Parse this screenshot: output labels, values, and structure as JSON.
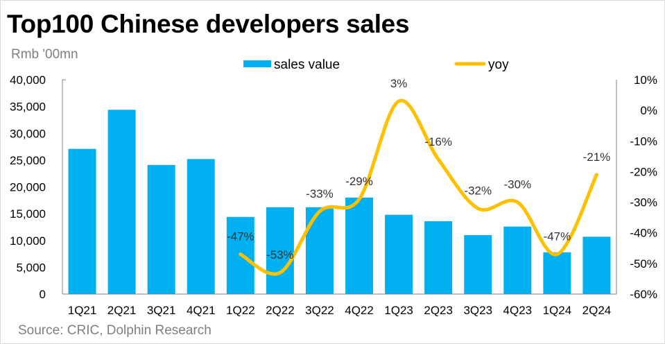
{
  "chart_data": {
    "type": "bar+line",
    "title": "Top100 Chinese developers sales",
    "ylabel": "Rmb '00mn",
    "source": "Source: CRIC, Dolphin Research",
    "categories": [
      "1Q21",
      "2Q21",
      "3Q21",
      "4Q21",
      "1Q22",
      "2Q22",
      "3Q22",
      "4Q22",
      "1Q23",
      "2Q23",
      "3Q23",
      "4Q23",
      "1Q24",
      "2Q24"
    ],
    "series": [
      {
        "name": "sales value",
        "type": "bar",
        "axis": "left",
        "color": "#00b0f0",
        "values": [
          27100,
          34400,
          24100,
          25200,
          14400,
          16200,
          16200,
          18000,
          14800,
          13600,
          11000,
          12600,
          7800,
          10700
        ]
      },
      {
        "name": "yoy",
        "type": "line",
        "axis": "right",
        "color": "#ffc000",
        "values": [
          null,
          null,
          null,
          null,
          -47,
          -53,
          -33,
          -29,
          3,
          -16,
          -32,
          -30,
          -47,
          -21
        ],
        "labels": [
          "",
          "",
          "",
          "",
          "-47%",
          "-53%",
          "-33%",
          "-29%",
          "3%",
          "-16%",
          "-32%",
          "-30%",
          "-47%",
          "-21%"
        ]
      }
    ],
    "left_axis": {
      "range": [
        0,
        40000
      ],
      "ticks": [
        "0",
        "5,000",
        "10,000",
        "15,000",
        "20,000",
        "25,000",
        "30,000",
        "35,000",
        "40,000"
      ]
    },
    "right_axis": {
      "range": [
        -60,
        10
      ],
      "ticks": [
        "-60%",
        "-50%",
        "-40%",
        "-30%",
        "-20%",
        "-10%",
        "0%",
        "10%"
      ]
    },
    "legend": "top-center",
    "grid": false
  }
}
